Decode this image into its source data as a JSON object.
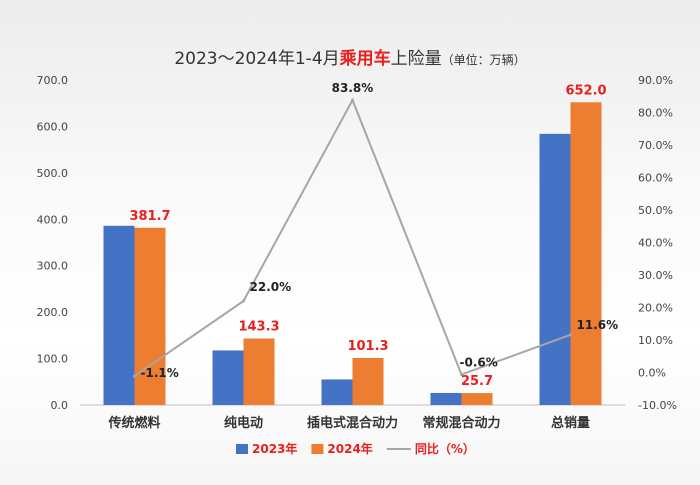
{
  "chart_data": {
    "type": "bar",
    "title_parts": {
      "prefix": "2023～2024年1-4月",
      "highlight": "乘用车",
      "suffix": "上险量",
      "unit": "（单位：万辆）"
    },
    "categories": [
      "传统燃料",
      "纯电动",
      "插电式混合动力",
      "常规混合动力",
      "总销量"
    ],
    "series": [
      {
        "name": "2023年",
        "type": "bar",
        "axis": "left",
        "color": "#4472c4",
        "values": [
          386.0,
          117.5,
          55.0,
          25.9,
          584.0
        ]
      },
      {
        "name": "2024年",
        "type": "bar",
        "axis": "left",
        "color": "#ed7d31",
        "values": [
          381.7,
          143.3,
          101.3,
          25.7,
          652.0
        ],
        "labels": [
          "381.7",
          "143.3",
          "101.3",
          "25.7",
          "652.0"
        ]
      },
      {
        "name": "同比（%）",
        "type": "line",
        "axis": "right",
        "color": "#a6a6a6",
        "values": [
          -1.1,
          22.0,
          83.8,
          -0.6,
          11.6
        ],
        "labels": [
          "-1.1%",
          "22.0%",
          "83.8%",
          "-0.6%",
          "11.6%"
        ]
      }
    ],
    "y_left": {
      "min": 0,
      "max": 700,
      "step": 100,
      "ticks": [
        "0.0",
        "100.0",
        "200.0",
        "300.0",
        "400.0",
        "500.0",
        "600.0",
        "700.0"
      ]
    },
    "y_right": {
      "min": -10,
      "max": 90,
      "step": 10,
      "ticks": [
        "-10.0%",
        "0.0%",
        "10.0%",
        "20.0%",
        "30.0%",
        "40.0%",
        "50.0%",
        "60.0%",
        "70.0%",
        "80.0%",
        "90.0%"
      ]
    },
    "grid": false,
    "legend_position": "bottom"
  }
}
